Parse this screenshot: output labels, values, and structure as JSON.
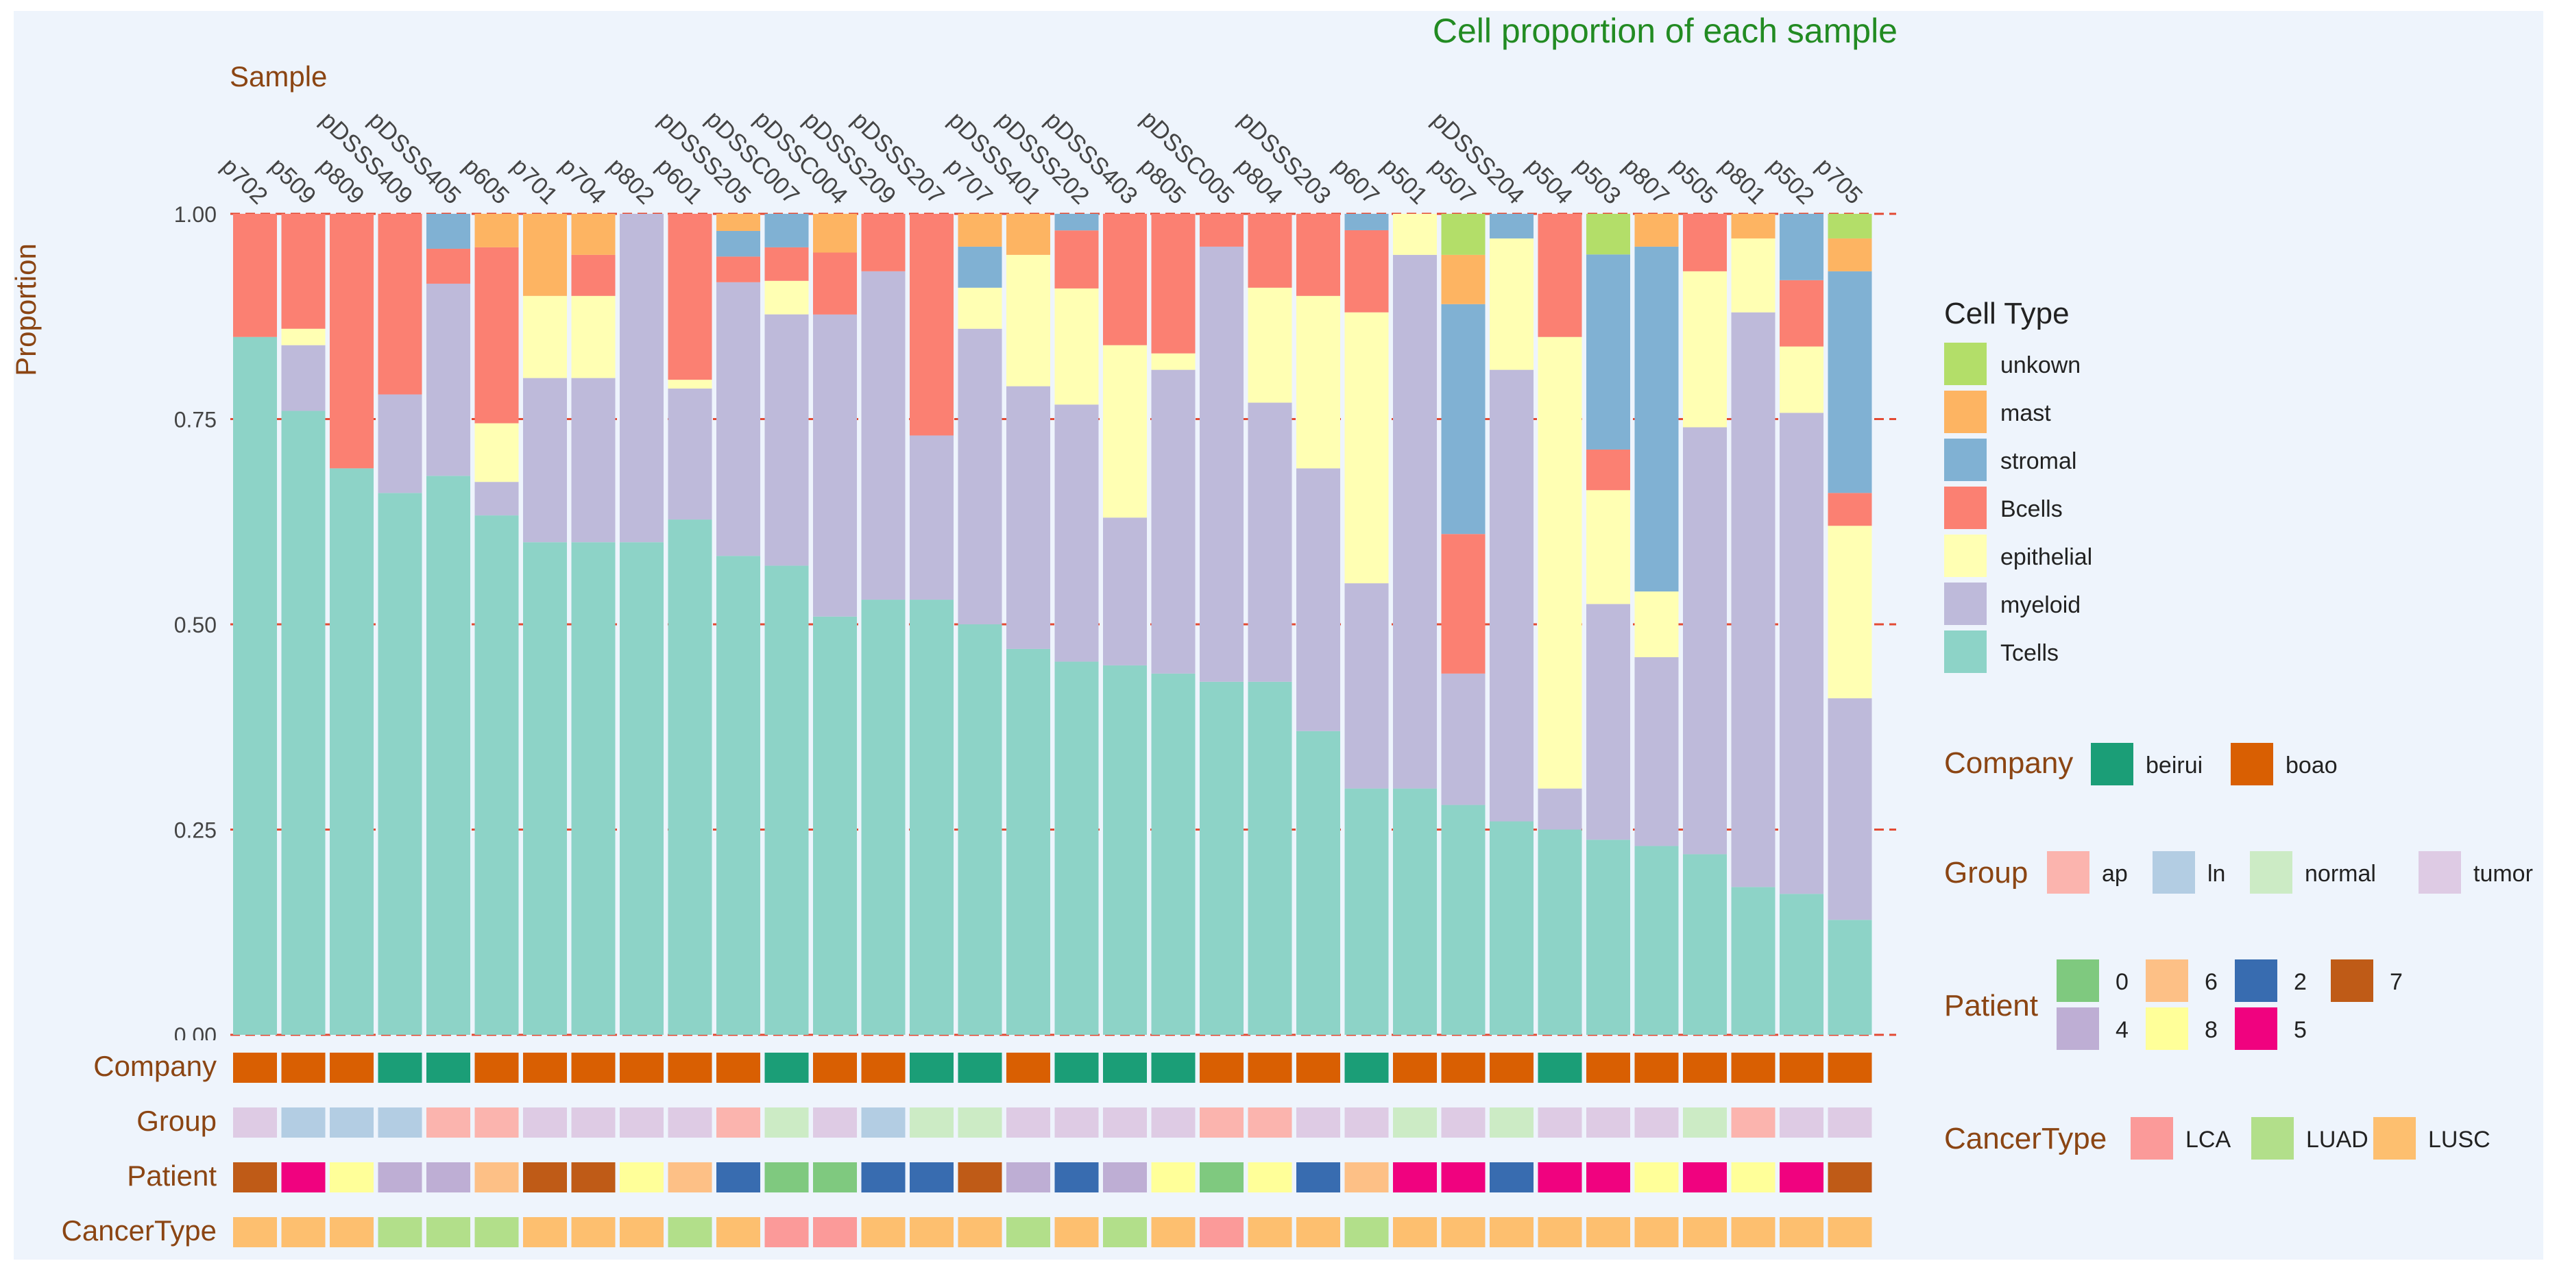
{
  "chart_data": {
    "type": "bar",
    "stacked": true,
    "title": "Cell proportion of each sample",
    "xlabel": "Sample",
    "ylabel": "Proportion",
    "ylim": [
      0,
      1
    ],
    "yticks": [
      "0.00",
      "0.25",
      "0.50",
      "0.75",
      "1.00"
    ],
    "categories": [
      "p702",
      "p509",
      "p809",
      "pDSSS409",
      "pDSSS405",
      "p605",
      "p701",
      "p704",
      "p802",
      "p601",
      "pDSSS205",
      "pDSSC007",
      "pDSSC004",
      "pDSSS209",
      "pDSSS207",
      "p707",
      "pDSSS401",
      "pDSSS202",
      "pDSSS403",
      "p805",
      "pDSSC005",
      "p804",
      "pDSSS203",
      "p607",
      "p501",
      "p507",
      "pDSSS204",
      "p504",
      "p503",
      "p807",
      "p505",
      "p801",
      "p502",
      "p705"
    ],
    "series": [
      {
        "name": "Tcells",
        "color": "#8DD3C7",
        "values": [
          0.85,
          0.76,
          0.69,
          0.66,
          0.64,
          0.62,
          0.6,
          0.6,
          0.6,
          0.59,
          0.56,
          0.56,
          0.54,
          0.53,
          0.53,
          0.5,
          0.47,
          0.45,
          0.45,
          0.44,
          0.43,
          0.43,
          0.37,
          0.3,
          0.3,
          0.28,
          0.26,
          0.25,
          0.24,
          0.23,
          0.22,
          0.18,
          0.17,
          0.14
        ]
      },
      {
        "name": "myeloid",
        "color": "#BEBADA",
        "values": [
          0,
          0.08,
          0,
          0.12,
          0.22,
          0.04,
          0.2,
          0.2,
          0.4,
          0.15,
          0.32,
          0.3,
          0.39,
          0.4,
          0.2,
          0.36,
          0.32,
          0.31,
          0.18,
          0.37,
          0.53,
          0.34,
          0.32,
          0.25,
          0.65,
          0.16,
          0.55,
          0.05,
          0.29,
          0.23,
          0.52,
          0.7,
          0.58,
          0.27
        ]
      },
      {
        "name": "epithelial",
        "color": "#FFFFB3",
        "values": [
          0,
          0.02,
          0,
          0,
          0,
          0.07,
          0.1,
          0.1,
          0,
          0.01,
          0,
          0.04,
          0,
          0,
          0,
          0.05,
          0.16,
          0.14,
          0.21,
          0.02,
          0,
          0.14,
          0.21,
          0.33,
          0.05,
          0,
          0.16,
          0.55,
          0.14,
          0.08,
          0.19,
          0.09,
          0.08,
          0.21
        ]
      },
      {
        "name": "Bcells",
        "color": "#FB8072",
        "values": [
          0.15,
          0.14,
          0.31,
          0.22,
          0.04,
          0.21,
          0,
          0.05,
          0,
          0.19,
          0.03,
          0.04,
          0.08,
          0.07,
          0.27,
          0,
          0,
          0.07,
          0.16,
          0.17,
          0.04,
          0.09,
          0.1,
          0.1,
          0,
          0.17,
          0,
          0.15,
          0.05,
          0,
          0.07,
          0,
          0.08,
          0.04
        ]
      },
      {
        "name": "stromal",
        "color": "#80B1D3",
        "values": [
          0,
          0,
          0,
          0,
          0.04,
          0,
          0,
          0,
          0,
          0,
          0.03,
          0.04,
          0,
          0,
          0,
          0.05,
          0,
          0.02,
          0,
          0,
          0,
          0,
          0,
          0.02,
          0,
          0.28,
          0.03,
          0,
          0.24,
          0.42,
          0,
          0,
          0.08,
          0.27
        ]
      },
      {
        "name": "mast",
        "color": "#FDB462",
        "values": [
          0,
          0,
          0,
          0,
          0,
          0.04,
          0.1,
          0.05,
          0,
          0,
          0.02,
          0,
          0.05,
          0,
          0,
          0.04,
          0.05,
          0,
          0,
          0,
          0,
          0,
          0,
          0,
          0,
          0.06,
          0,
          0,
          0,
          0.04,
          0,
          0.03,
          0,
          0.04
        ]
      },
      {
        "name": "unkown",
        "color": "#B3DE69",
        "values": [
          0,
          0,
          0,
          0,
          0,
          0,
          0,
          0,
          0,
          0,
          0,
          0,
          0,
          0,
          0,
          0,
          0,
          0,
          0,
          0,
          0,
          0,
          0,
          0,
          0,
          0.05,
          0,
          0,
          0.05,
          0,
          0,
          0,
          0,
          0.03
        ]
      }
    ],
    "legend_title": "Cell Type",
    "legend_order": [
      "unkown",
      "mast",
      "stromal",
      "Bcells",
      "epithelial",
      "myeloid",
      "Tcells"
    ],
    "annotations": [
      {
        "name": "Company",
        "colors": {
          "beirui": "#1B9E77",
          "boao": "#D95F02"
        },
        "levels": [
          "beirui",
          "boao"
        ],
        "values": [
          "boao",
          "boao",
          "boao",
          "beirui",
          "beirui",
          "boao",
          "boao",
          "boao",
          "boao",
          "boao",
          "boao",
          "beirui",
          "boao",
          "boao",
          "beirui",
          "beirui",
          "boao",
          "beirui",
          "beirui",
          "beirui",
          "boao",
          "boao",
          "boao",
          "beirui",
          "boao",
          "boao",
          "boao",
          "beirui",
          "boao",
          "boao",
          "boao",
          "boao",
          "boao",
          "boao"
        ]
      },
      {
        "name": "Group",
        "colors": {
          "ap": "#FBB4AE",
          "ln": "#B3CDE3",
          "normal": "#CCEBC5",
          "tumor": "#DECBE4"
        },
        "levels": [
          "ap",
          "ln",
          "normal",
          "tumor"
        ],
        "values": [
          "tumor",
          "ln",
          "ln",
          "ln",
          "ap",
          "ap",
          "tumor",
          "tumor",
          "tumor",
          "tumor",
          "ap",
          "normal",
          "tumor",
          "ln",
          "normal",
          "normal",
          "tumor",
          "tumor",
          "tumor",
          "tumor",
          "ap",
          "ap",
          "tumor",
          "tumor",
          "normal",
          "tumor",
          "normal",
          "tumor",
          "tumor",
          "tumor",
          "normal",
          "ap",
          "tumor",
          "tumor"
        ]
      },
      {
        "name": "Patient",
        "colors": {
          "0": "#7FC97F",
          "6": "#FDC086",
          "2": "#386CB0",
          "7": "#BF5B17",
          "4": "#BEAED4",
          "8": "#FFFF99",
          "5": "#F0027F"
        },
        "levels": [
          "0",
          "6",
          "2",
          "7",
          "4",
          "8",
          "5"
        ],
        "values": [
          "7",
          "5",
          "8",
          "4",
          "4",
          "6",
          "7",
          "7",
          "8",
          "6",
          "2",
          "0",
          "0",
          "2",
          "2",
          "7",
          "4",
          "2",
          "4",
          "8",
          "0",
          "8",
          "2",
          "6",
          "5",
          "5",
          "2",
          "5",
          "5",
          "8",
          "5",
          "8",
          "5",
          "7"
        ]
      },
      {
        "name": "CancerType",
        "colors": {
          "LCA": "#FB9A99",
          "LUAD": "#B2DF8A",
          "LUSC": "#FDBF6F"
        },
        "levels": [
          "LCA",
          "LUAD",
          "LUSC"
        ],
        "values": [
          "LUSC",
          "LUSC",
          "LUSC",
          "LUAD",
          "LUAD",
          "LUAD",
          "LUSC",
          "LUSC",
          "LUSC",
          "LUAD",
          "LUSC",
          "LCA",
          "LCA",
          "LUSC",
          "LUSC",
          "LUSC",
          "LUAD",
          "LUSC",
          "LUAD",
          "LUSC",
          "LCA",
          "LUSC",
          "LUSC",
          "LUAD",
          "LUSC",
          "LUSC",
          "LUSC",
          "LUSC",
          "LUSC",
          "LUSC",
          "LUSC",
          "LUSC",
          "LUSC",
          "LUSC"
        ]
      }
    ],
    "grid": true,
    "legend_position": "right",
    "colors": {
      "background": "#EEF4FC",
      "title": "#228B22",
      "axis_label": "#8B4513",
      "gridline": "#E34A33"
    }
  }
}
